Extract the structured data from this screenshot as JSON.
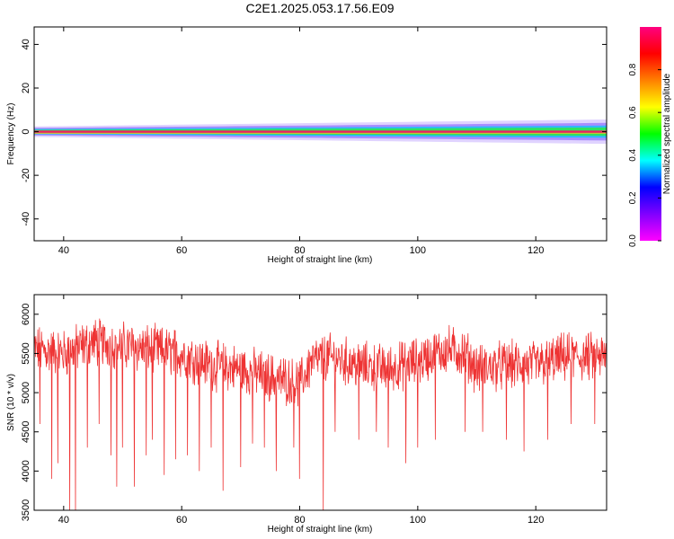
{
  "title": "C2E1.2025.053.17.56.E09",
  "chart_data": [
    {
      "type": "heatmap",
      "xlabel": "Height of straight line (km)",
      "ylabel": "Frequency (Hz)",
      "xlim": [
        35,
        132
      ],
      "ylim": [
        -50,
        48
      ],
      "xticks": [
        40,
        60,
        80,
        100,
        120
      ],
      "yticks": [
        40,
        20,
        0,
        -20,
        -40
      ],
      "colorbar": {
        "label": "Normalized spectral amplitude",
        "range": [
          0,
          1
        ],
        "ticks": [
          0.0,
          0.2,
          0.4,
          0.6,
          0.8
        ],
        "colors": [
          "#ff00ff",
          "#8000ff",
          "#0000ff",
          "#00ffff",
          "#00ff00",
          "#ffff00",
          "#ff8000",
          "#ff0000",
          "#ff0080"
        ]
      },
      "band": {
        "center_hz": 0,
        "halfwidth_hz_start": 1.5,
        "halfwidth_hz_end": 3.5
      }
    },
    {
      "type": "line",
      "xlabel": "Height of straight line (km)",
      "ylabel": "SNR (10 * v/v)",
      "xlim": [
        35,
        132
      ],
      "ylim": [
        3500,
        6250
      ],
      "xticks": [
        40,
        60,
        80,
        100,
        120
      ],
      "yticks": [
        6000,
        5500,
        5000,
        4500,
        4000,
        3500
      ],
      "line_color": "#ee3333",
      "baseline": [
        [
          35,
          5550
        ],
        [
          40,
          5500
        ],
        [
          45,
          5650
        ],
        [
          50,
          5600
        ],
        [
          55,
          5550
        ],
        [
          60,
          5500
        ],
        [
          65,
          5350
        ],
        [
          70,
          5300
        ],
        [
          75,
          5200
        ],
        [
          78,
          5150
        ],
        [
          80,
          5100
        ],
        [
          82,
          5400
        ],
        [
          85,
          5450
        ],
        [
          90,
          5350
        ],
        [
          95,
          5300
        ],
        [
          100,
          5400
        ],
        [
          105,
          5550
        ],
        [
          108,
          5500
        ],
        [
          110,
          5300
        ],
        [
          115,
          5350
        ],
        [
          120,
          5350
        ],
        [
          125,
          5450
        ],
        [
          132,
          5450
        ]
      ],
      "spikes": [
        [
          36,
          4600
        ],
        [
          38,
          3900
        ],
        [
          39,
          4100
        ],
        [
          41,
          3500
        ],
        [
          42,
          3500
        ],
        [
          44,
          4300
        ],
        [
          46,
          4600
        ],
        [
          48,
          4200
        ],
        [
          49,
          3800
        ],
        [
          50,
          4300
        ],
        [
          52,
          3800
        ],
        [
          54,
          4200
        ],
        [
          55,
          4400
        ],
        [
          57,
          3950
        ],
        [
          59,
          4150
        ],
        [
          61,
          4200
        ],
        [
          63,
          4000
        ],
        [
          65,
          4300
        ],
        [
          67,
          3750
        ],
        [
          70,
          4050
        ],
        [
          72,
          4350
        ],
        [
          74,
          4300
        ],
        [
          76,
          4000
        ],
        [
          79,
          4300
        ],
        [
          80,
          3900
        ],
        [
          84,
          3500
        ],
        [
          86,
          4500
        ],
        [
          90,
          4400
        ],
        [
          93,
          4500
        ],
        [
          95,
          4300
        ],
        [
          98,
          4100
        ],
        [
          100,
          4300
        ],
        [
          103,
          4400
        ],
        [
          108,
          4500
        ],
        [
          111,
          4500
        ],
        [
          115,
          4400
        ],
        [
          118,
          4250
        ],
        [
          122,
          4400
        ],
        [
          126,
          4600
        ],
        [
          130,
          4600
        ]
      ]
    }
  ]
}
